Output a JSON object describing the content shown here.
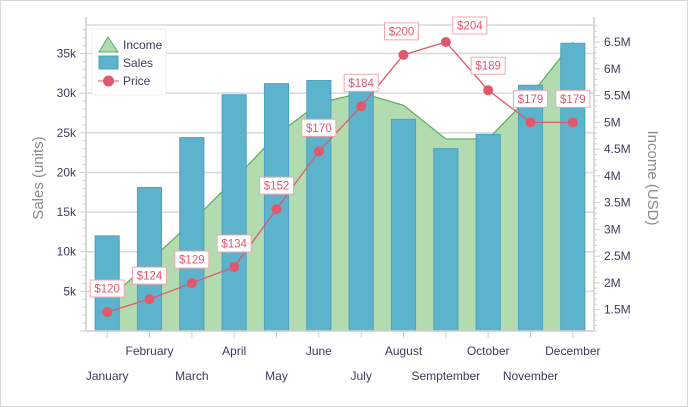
{
  "chart_data": {
    "type": "bar",
    "categories": [
      "January",
      "February",
      "March",
      "April",
      "May",
      "June",
      "July",
      "August",
      "Semptember",
      "October",
      "November",
      "December"
    ],
    "series": [
      {
        "name": "Income",
        "type": "area",
        "axis": "right",
        "color": "#b3dbb0",
        "line_color": "#5aac5a",
        "values": [
          1.65,
          2.4,
          3.14,
          3.93,
          4.76,
          5.36,
          5.55,
          5.32,
          4.69,
          4.69,
          5.5,
          6.5
        ]
      },
      {
        "name": "Sales",
        "type": "bar",
        "axis": "left",
        "color": "#5db2cc",
        "values": [
          12000,
          18100,
          24400,
          29800,
          31200,
          31600,
          30400,
          26700,
          23000,
          24800,
          31000,
          36300
        ]
      },
      {
        "name": "Price",
        "type": "line",
        "axis": "hidden",
        "color": "#e0586e",
        "values": [
          120,
          124,
          129,
          134,
          152,
          170,
          184,
          200,
          204,
          189,
          179,
          179
        ],
        "labels": [
          "$120",
          "$124",
          "$129",
          "$134",
          "$152",
          "$170",
          "$184",
          "$200",
          "$204",
          "$189",
          "$179",
          "$179"
        ]
      }
    ],
    "left_axis": {
      "title": "Sales (units)",
      "range": [
        0,
        38600
      ],
      "ticks": [
        5000,
        10000,
        15000,
        20000,
        25000,
        30000,
        35000
      ],
      "tick_labels": [
        "5k",
        "10k",
        "15k",
        "20k",
        "25k",
        "30k",
        "35k"
      ]
    },
    "right_axis": {
      "title": "Income (USD)",
      "range": [
        1.1,
        6.82
      ],
      "ticks": [
        1.5,
        2,
        2.5,
        3,
        3.5,
        4,
        4.5,
        5,
        5.5,
        6,
        6.5
      ],
      "tick_labels": [
        "1.5M",
        "2M",
        "2.5M",
        "3M",
        "3.5M",
        "4M",
        "4.5M",
        "5M",
        "5.5M",
        "6M",
        "6.5M"
      ]
    },
    "grid": true,
    "legend": {
      "placement": "top-left",
      "items": [
        "Income",
        "Sales",
        "Price"
      ]
    }
  }
}
